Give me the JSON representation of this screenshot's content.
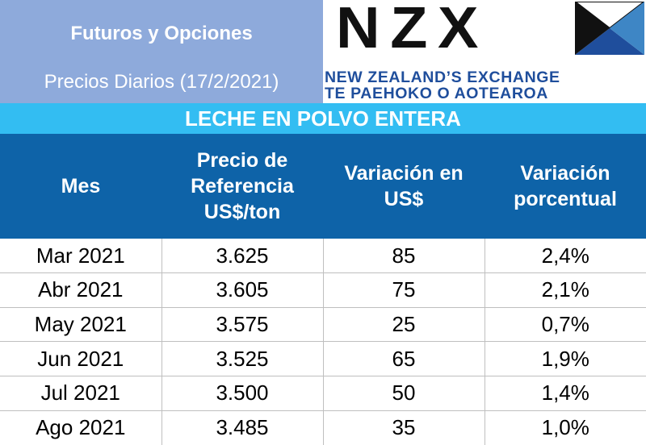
{
  "header": {
    "title": "Futuros y Opciones",
    "subtitle": "Precios Diarios (17/2/2021)"
  },
  "logo": {
    "wordmark": "NZX",
    "line1": "NEW ZEALAND’S EXCHANGE",
    "line2": "TE PAEHOKO O AOTEAROA",
    "colors": {
      "dark": "#111111",
      "blue": "#1f4e9c",
      "light_blue": "#3e86c5"
    }
  },
  "product": "LECHE EN POLVO ENTERA",
  "table": {
    "columns": [
      {
        "id": "mes",
        "label": "Mes"
      },
      {
        "id": "precio",
        "label": "Precio de Referencia US$/ton"
      },
      {
        "id": "variacion",
        "label": "Variación en US$"
      },
      {
        "id": "porcentual",
        "label": "Variación porcentual"
      }
    ],
    "rows": [
      {
        "mes": "Mar 2021",
        "precio": "3.625",
        "variacion": "85",
        "porcentual": "2,4%"
      },
      {
        "mes": "Abr 2021",
        "precio": "3.605",
        "variacion": "75",
        "porcentual": "2,1%"
      },
      {
        "mes": "May 2021",
        "precio": "3.575",
        "variacion": "25",
        "porcentual": "0,7%"
      },
      {
        "mes": "Jun 2021",
        "precio": "3.525",
        "variacion": "65",
        "porcentual": "1,9%"
      },
      {
        "mes": "Jul 2021",
        "precio": "3.500",
        "variacion": "50",
        "porcentual": "1,4%"
      },
      {
        "mes": "Ago 2021",
        "precio": "3.485",
        "variacion": "35",
        "porcentual": "1,0%"
      }
    ]
  },
  "colors": {
    "title_background": "#8eaadb",
    "product_bar": "#33bdf2",
    "table_header": "#0e63a8",
    "grid_line": "#bfbfbf"
  }
}
